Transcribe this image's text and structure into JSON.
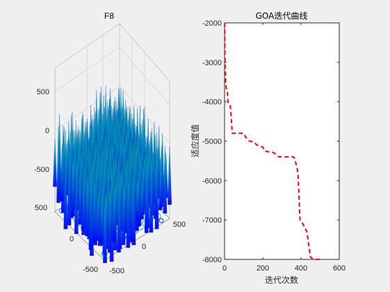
{
  "window": {
    "background": "#f0f0f0"
  },
  "chart_data": [
    {
      "type": "surface3d",
      "title": "F8",
      "z_ticks": [
        "500",
        "0",
        "-500"
      ],
      "x_ticks": [
        "500",
        "0",
        "-500"
      ],
      "y_ticks": [
        "500",
        "0",
        "-500"
      ],
      "zlim": [
        -1000,
        900
      ],
      "xlim": [
        -500,
        500
      ],
      "ylim": [
        -500,
        500
      ],
      "colormap": "winter",
      "colors": {
        "low": "#0000ff",
        "high": "#00ff80"
      },
      "has_contour_base": true
    },
    {
      "type": "line",
      "title": "GOA迭代曲线",
      "xlabel": "迭代次数",
      "ylabel": "适应度值",
      "xlim": [
        0,
        600
      ],
      "ylim": [
        -8000,
        -2000
      ],
      "x_ticks": [
        "0",
        "200",
        "400",
        "600"
      ],
      "y_ticks": [
        "-2000",
        "-3000",
        "-4000",
        "-5000",
        "-6000",
        "-7000",
        "-8000"
      ],
      "series": [
        {
          "color": "#ff0000",
          "line_style": "dashed",
          "x": [
            1,
            2,
            3,
            5,
            6,
            8,
            9,
            12,
            14,
            18,
            22,
            30,
            35,
            40,
            50,
            60,
            100,
            110,
            130,
            150,
            170,
            180,
            200,
            210,
            230,
            250,
            260,
            280,
            300,
            340,
            360,
            365,
            370,
            375,
            380,
            385,
            395,
            410,
            430,
            450,
            470,
            500
          ],
          "y": [
            -2000,
            -2900,
            -3100,
            -3300,
            -3500,
            -3620,
            -3660,
            -3680,
            -3700,
            -4000,
            -4040,
            -4100,
            -4400,
            -4800,
            -4800,
            -4800,
            -4800,
            -4900,
            -5000,
            -5020,
            -5100,
            -5120,
            -5150,
            -5250,
            -5270,
            -5280,
            -5300,
            -5390,
            -5400,
            -5400,
            -5400,
            -5420,
            -5500,
            -5600,
            -5700,
            -5900,
            -7000,
            -7100,
            -7300,
            -7950,
            -8000,
            -8000
          ]
        }
      ]
    }
  ]
}
